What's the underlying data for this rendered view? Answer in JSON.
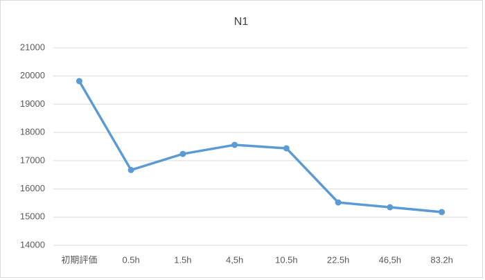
{
  "chart_data": {
    "type": "line",
    "title": "N1",
    "categories": [
      "初期評価",
      "0.5h",
      "1.5h",
      "4,5h",
      "10.5h",
      "22.5h",
      "46,5h",
      "83.2h"
    ],
    "series": [
      {
        "name": "N1",
        "color": "#5b9bd5",
        "values": [
          19820,
          16670,
          17240,
          17560,
          17440,
          15520,
          15350,
          15180
        ]
      }
    ],
    "ylim": [
      14000,
      21000
    ],
    "yticks": [
      14000,
      15000,
      16000,
      17000,
      18000,
      19000,
      20000,
      21000
    ],
    "grid": true
  }
}
